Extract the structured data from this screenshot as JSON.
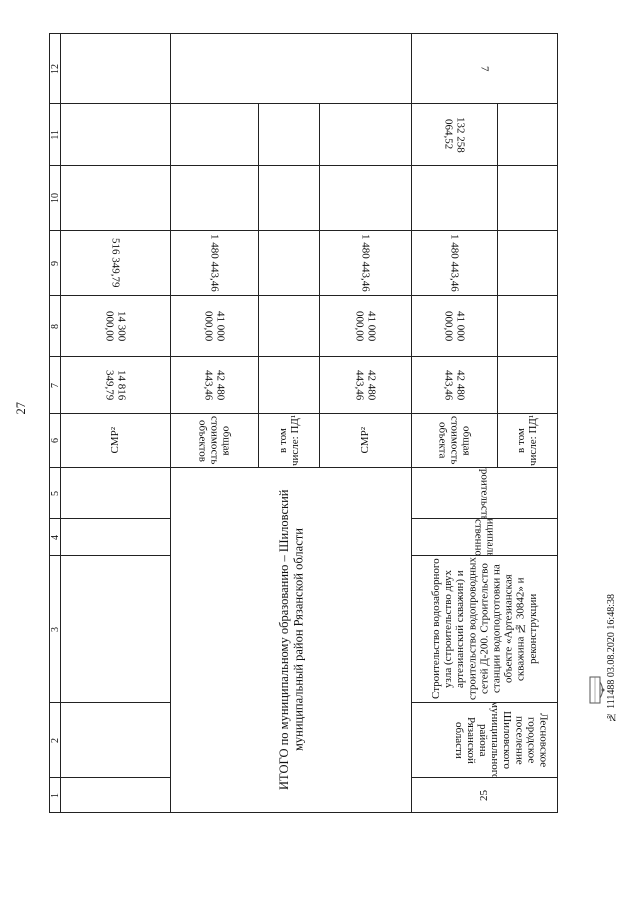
{
  "page_number": "27",
  "header_numbers": [
    "1",
    "2",
    "3",
    "4",
    "5",
    "6",
    "7",
    "8",
    "9",
    "10",
    "11",
    "12"
  ],
  "prev_row": {
    "c6": "СМР²",
    "c7": "14 816 349,79",
    "c8": "14 300 000,00",
    "c9": "516 349,79"
  },
  "total": {
    "label": "ИТОГО по муниципальному образованию – Шиловский муниципальный район Рязанской области",
    "rows": [
      {
        "c6": "общая стоимость объектов",
        "c7": "42 480 443,46",
        "c8": "41 000 000,00",
        "c9": "1 480 443,46"
      },
      {
        "c6": "в том числе: ПД¹"
      },
      {
        "c6": "СМР²",
        "c7": "42 480 443,46",
        "c8": "41 000 000,00",
        "c9": "1 480 443,46"
      }
    ]
  },
  "item": {
    "num": "25",
    "municipality": "Лесновское городское поселение Шиловского муниципального района Рязанской области",
    "object": "Строительство водозаборного узла (строительство двух артезианский скважин) и строительство водопроводных сетей Д-200. Строительство станции водоподготовки на объекте «Артезианская скважина № 30842» и реконструкции",
    "ownership": "муниципальная собственность",
    "work_type": "строительство",
    "rows": [
      {
        "c6": "общая стоимость объекта",
        "c7": "42 480 443,46",
        "c8": "41 000 000,00",
        "c9": "1 480 443,46",
        "c11": "132 258 064,52"
      },
      {
        "c6": "в том числе: ПД¹"
      }
    ],
    "c12": "7"
  },
  "footer": {
    "registration": "№ 111488 03.08.2020 16:48:38",
    "stamp_icon": "building-stamp-icon"
  }
}
